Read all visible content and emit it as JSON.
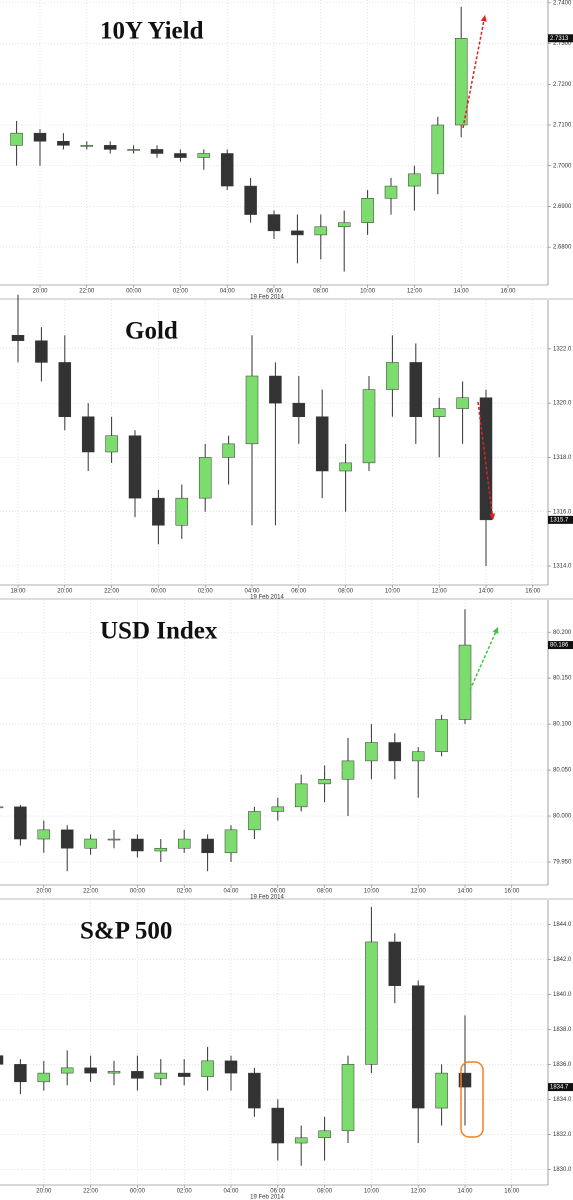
{
  "chart_data": [
    {
      "type": "candlestick",
      "title": "10Y Yield",
      "date": "19 Feb 2014",
      "up_color": "#7ddc6e",
      "down_color": "#333333",
      "grid": true,
      "x": [
        "18:00",
        "19:00",
        "20:00",
        "21:00",
        "22:00",
        "23:00",
        "00:00",
        "01:00",
        "02:00",
        "03:00",
        "04:00",
        "05:00",
        "06:00",
        "07:00",
        "08:00",
        "09:00",
        "10:00",
        "11:00",
        "12:00",
        "13:00",
        "14:00",
        "15:00",
        "16:00"
      ],
      "xticks": [
        "20:00",
        "22:00",
        "00:00",
        "02:00",
        "04:00",
        "06:00",
        "08:00",
        "10:00",
        "12:00",
        "14:00",
        "16:00"
      ],
      "open": [
        null,
        2.705,
        2.708,
        2.706,
        2.705,
        2.705,
        2.704,
        2.704,
        2.703,
        2.702,
        2.703,
        2.695,
        2.688,
        2.684,
        2.683,
        2.685,
        2.686,
        2.692,
        2.695,
        2.698,
        2.71,
        null,
        null
      ],
      "high": [
        null,
        2.711,
        2.709,
        2.708,
        2.706,
        2.706,
        2.705,
        2.705,
        2.704,
        2.704,
        2.704,
        2.697,
        2.689,
        2.688,
        2.688,
        2.689,
        2.694,
        2.697,
        2.7,
        2.712,
        2.739,
        null,
        null
      ],
      "low": [
        null,
        2.7,
        2.7,
        2.704,
        2.704,
        2.703,
        2.703,
        2.702,
        2.701,
        2.699,
        2.694,
        2.686,
        2.682,
        2.676,
        2.677,
        2.674,
        2.683,
        2.688,
        2.689,
        2.693,
        2.707,
        null,
        null
      ],
      "close": [
        null,
        2.708,
        2.706,
        2.705,
        2.705,
        2.704,
        2.704,
        2.703,
        2.702,
        2.703,
        2.695,
        2.688,
        2.684,
        2.683,
        2.685,
        2.686,
        2.692,
        2.695,
        2.698,
        2.71,
        2.7313,
        null,
        null
      ],
      "last": 2.7313,
      "ylim": [
        2.6707,
        2.7407
      ],
      "yticks": [
        {
          "value": 2.68,
          "label": "2.6800"
        },
        {
          "value": 2.69,
          "label": "2.6900"
        },
        {
          "value": 2.7,
          "label": "2.7000"
        },
        {
          "value": 2.71,
          "label": "2.7100"
        },
        {
          "value": 2.72,
          "label": "2.7200"
        },
        {
          "value": 2.73,
          "label": "2.7300"
        },
        {
          "value": 2.74,
          "label": "2.7400"
        }
      ]
    },
    {
      "type": "candlestick",
      "title": "Gold",
      "date": "19 Feb 2014",
      "up_color": "#7ddc6e",
      "down_color": "#333333",
      "grid": true,
      "x": [
        "18:00",
        "19:00",
        "20:00",
        "21:00",
        "22:00",
        "23:00",
        "00:00",
        "01:00",
        "02:00",
        "03:00",
        "04:00",
        "05:00",
        "06:00",
        "07:00",
        "08:00",
        "09:00",
        "10:00",
        "11:00",
        "12:00",
        "13:00",
        "14:00",
        "15:00",
        "16:00"
      ],
      "xticks": [
        "18:00",
        "20:00",
        "22:00",
        "00:00",
        "02:00",
        "04:00",
        "06:00",
        "08:00",
        "10:00",
        "12:00",
        "14:00",
        "16:00"
      ],
      "open": [
        1322.5,
        1322.3,
        1321.5,
        1319.5,
        1318.2,
        1318.8,
        1316.5,
        1315.5,
        1316.5,
        1318,
        1318.5,
        1321,
        1320,
        1319.5,
        1317.5,
        1317.8,
        1320.5,
        1321.5,
        1319.5,
        1319.8,
        1320.2,
        null,
        null
      ],
      "high": [
        1324,
        1322.8,
        1322.5,
        1320,
        1319.5,
        1319,
        1316.8,
        1317,
        1318.5,
        1318.8,
        1322.5,
        1321.5,
        1321,
        1320.5,
        1318.5,
        1321,
        1322.5,
        1322.2,
        1320.2,
        1320.8,
        1320.5,
        null,
        null
      ],
      "low": [
        1321.5,
        1320.8,
        1319,
        1317.5,
        1317.8,
        1315.8,
        1314.8,
        1315,
        1316,
        1317,
        1315.5,
        1315.5,
        1318.5,
        1316.5,
        1316,
        1317.5,
        1319.5,
        1318.5,
        1318,
        1318.5,
        1314,
        null,
        null
      ],
      "close": [
        1322.3,
        1321.5,
        1319.5,
        1318.2,
        1318.8,
        1316.5,
        1315.5,
        1316.5,
        1318,
        1318.5,
        1321,
        1320,
        1319.5,
        1317.5,
        1317.8,
        1320.5,
        1321.5,
        1319.5,
        1319.8,
        1320.2,
        1315.7,
        null,
        null
      ],
      "last": 1315.7,
      "ylim": [
        1313.3,
        1323.8
      ],
      "yticks": [
        {
          "value": 1314,
          "label": "1314.0"
        },
        {
          "value": 1316,
          "label": "1316.0"
        },
        {
          "value": 1318,
          "label": "1318.0"
        },
        {
          "value": 1320,
          "label": "1320.0"
        },
        {
          "value": 1322,
          "label": "1322.0"
        }
      ]
    },
    {
      "type": "candlestick",
      "title": "USD Index",
      "date": "19 Feb 2014",
      "up_color": "#7ddc6e",
      "down_color": "#333333",
      "grid": true,
      "x": [
        "18:00",
        "19:00",
        "20:00",
        "21:00",
        "22:00",
        "23:00",
        "00:00",
        "01:00",
        "02:00",
        "03:00",
        "04:00",
        "05:00",
        "06:00",
        "07:00",
        "08:00",
        "09:00",
        "10:00",
        "11:00",
        "12:00",
        "13:00",
        "14:00",
        "15:00",
        "16:00"
      ],
      "xticks": [
        "20:00",
        "22:00",
        "00:00",
        "02:00",
        "04:00",
        "06:00",
        "08:00",
        "10:00",
        "12:00",
        "14:00",
        "16:00"
      ],
      "open": [
        80.01,
        80.01,
        79.975,
        79.985,
        79.965,
        79.975,
        79.975,
        79.962,
        79.965,
        79.975,
        79.96,
        79.985,
        80.005,
        80.01,
        80.035,
        80.04,
        80.06,
        80.08,
        80.06,
        80.07,
        80.105,
        null,
        null
      ],
      "high": [
        80.015,
        80.012,
        79.995,
        79.99,
        79.98,
        79.985,
        79.98,
        79.975,
        79.985,
        79.98,
        79.99,
        80.01,
        80.02,
        80.045,
        80.055,
        80.085,
        80.1,
        80.09,
        80.075,
        80.11,
        80.225,
        null,
        null
      ],
      "low": [
        80.005,
        79.968,
        79.96,
        79.94,
        79.958,
        79.965,
        79.955,
        79.95,
        79.96,
        79.94,
        79.95,
        79.975,
        79.995,
        80.005,
        80.015,
        80.0,
        80.04,
        80.04,
        80.02,
        80.065,
        80.1,
        null,
        null
      ],
      "close": [
        80.01,
        79.975,
        79.985,
        79.965,
        79.975,
        79.975,
        79.962,
        79.965,
        79.975,
        79.96,
        79.985,
        80.005,
        80.01,
        80.035,
        80.04,
        80.06,
        80.08,
        80.06,
        80.07,
        80.105,
        80.186,
        null,
        null
      ],
      "last": 80.186,
      "ylim": [
        79.925,
        80.235
      ],
      "yticks": [
        {
          "value": 79.95,
          "label": "79.950"
        },
        {
          "value": 80.0,
          "label": "80.000"
        },
        {
          "value": 80.05,
          "label": "80.050"
        },
        {
          "value": 80.1,
          "label": "80.100"
        },
        {
          "value": 80.15,
          "label": "80.150"
        },
        {
          "value": 80.2,
          "label": "80.200"
        }
      ]
    },
    {
      "type": "candlestick",
      "title": "S&P 500",
      "date": "19 Feb 2014",
      "up_color": "#7ddc6e",
      "down_color": "#333333",
      "grid": true,
      "x": [
        "18:00",
        "19:00",
        "20:00",
        "21:00",
        "22:00",
        "23:00",
        "00:00",
        "01:00",
        "02:00",
        "03:00",
        "04:00",
        "05:00",
        "06:00",
        "07:00",
        "08:00",
        "09:00",
        "10:00",
        "11:00",
        "12:00",
        "13:00",
        "14:00",
        "15:00",
        "16:00"
      ],
      "xticks": [
        "20:00",
        "22:00",
        "00:00",
        "02:00",
        "04:00",
        "06:00",
        "08:00",
        "10:00",
        "12:00",
        "14:00",
        "16:00"
      ],
      "open": [
        1836.5,
        1836,
        1835,
        1835.5,
        1835.8,
        1835.5,
        1835.6,
        1835.2,
        1835.5,
        1835.3,
        1836.2,
        1835.5,
        1833.5,
        1831.5,
        1831.8,
        1832.2,
        1836,
        1843,
        1840.5,
        1833.5,
        1835.5,
        null,
        null
      ],
      "high": [
        1837,
        1836.3,
        1836.2,
        1836.8,
        1836.5,
        1836.2,
        1836.5,
        1836.3,
        1836.3,
        1837,
        1836.5,
        1835.8,
        1834,
        1832.5,
        1833,
        1836.5,
        1845,
        1843.5,
        1840.8,
        1836,
        1838.8,
        null,
        null
      ],
      "low": [
        1835.5,
        1834.3,
        1834.5,
        1834.8,
        1835,
        1834.8,
        1834.5,
        1834.8,
        1834.8,
        1834.5,
        1834.5,
        1833,
        1830.5,
        1830.2,
        1830.5,
        1831.5,
        1835.5,
        1839.5,
        1831.5,
        1832.5,
        1832.5,
        null,
        null
      ],
      "close": [
        1836,
        1835,
        1835.5,
        1835.8,
        1835.5,
        1835.6,
        1835.2,
        1835.5,
        1835.3,
        1836.2,
        1835.5,
        1833.5,
        1831.5,
        1831.8,
        1832.2,
        1836,
        1843,
        1840.5,
        1833.5,
        1835.5,
        1834.7,
        null,
        null
      ],
      "last": 1834.7,
      "ylim": [
        1829.1,
        1845.4
      ],
      "yticks": [
        {
          "value": 1830,
          "label": "1830.0"
        },
        {
          "value": 1832,
          "label": "1832.0"
        },
        {
          "value": 1834,
          "label": "1834.0"
        },
        {
          "value": 1836,
          "label": "1836.0"
        },
        {
          "value": 1838,
          "label": "1838.0"
        },
        {
          "value": 1840,
          "label": "1840.0"
        },
        {
          "value": 1842,
          "label": "1842.0"
        },
        {
          "value": 1844,
          "label": "1844.0"
        }
      ]
    }
  ]
}
